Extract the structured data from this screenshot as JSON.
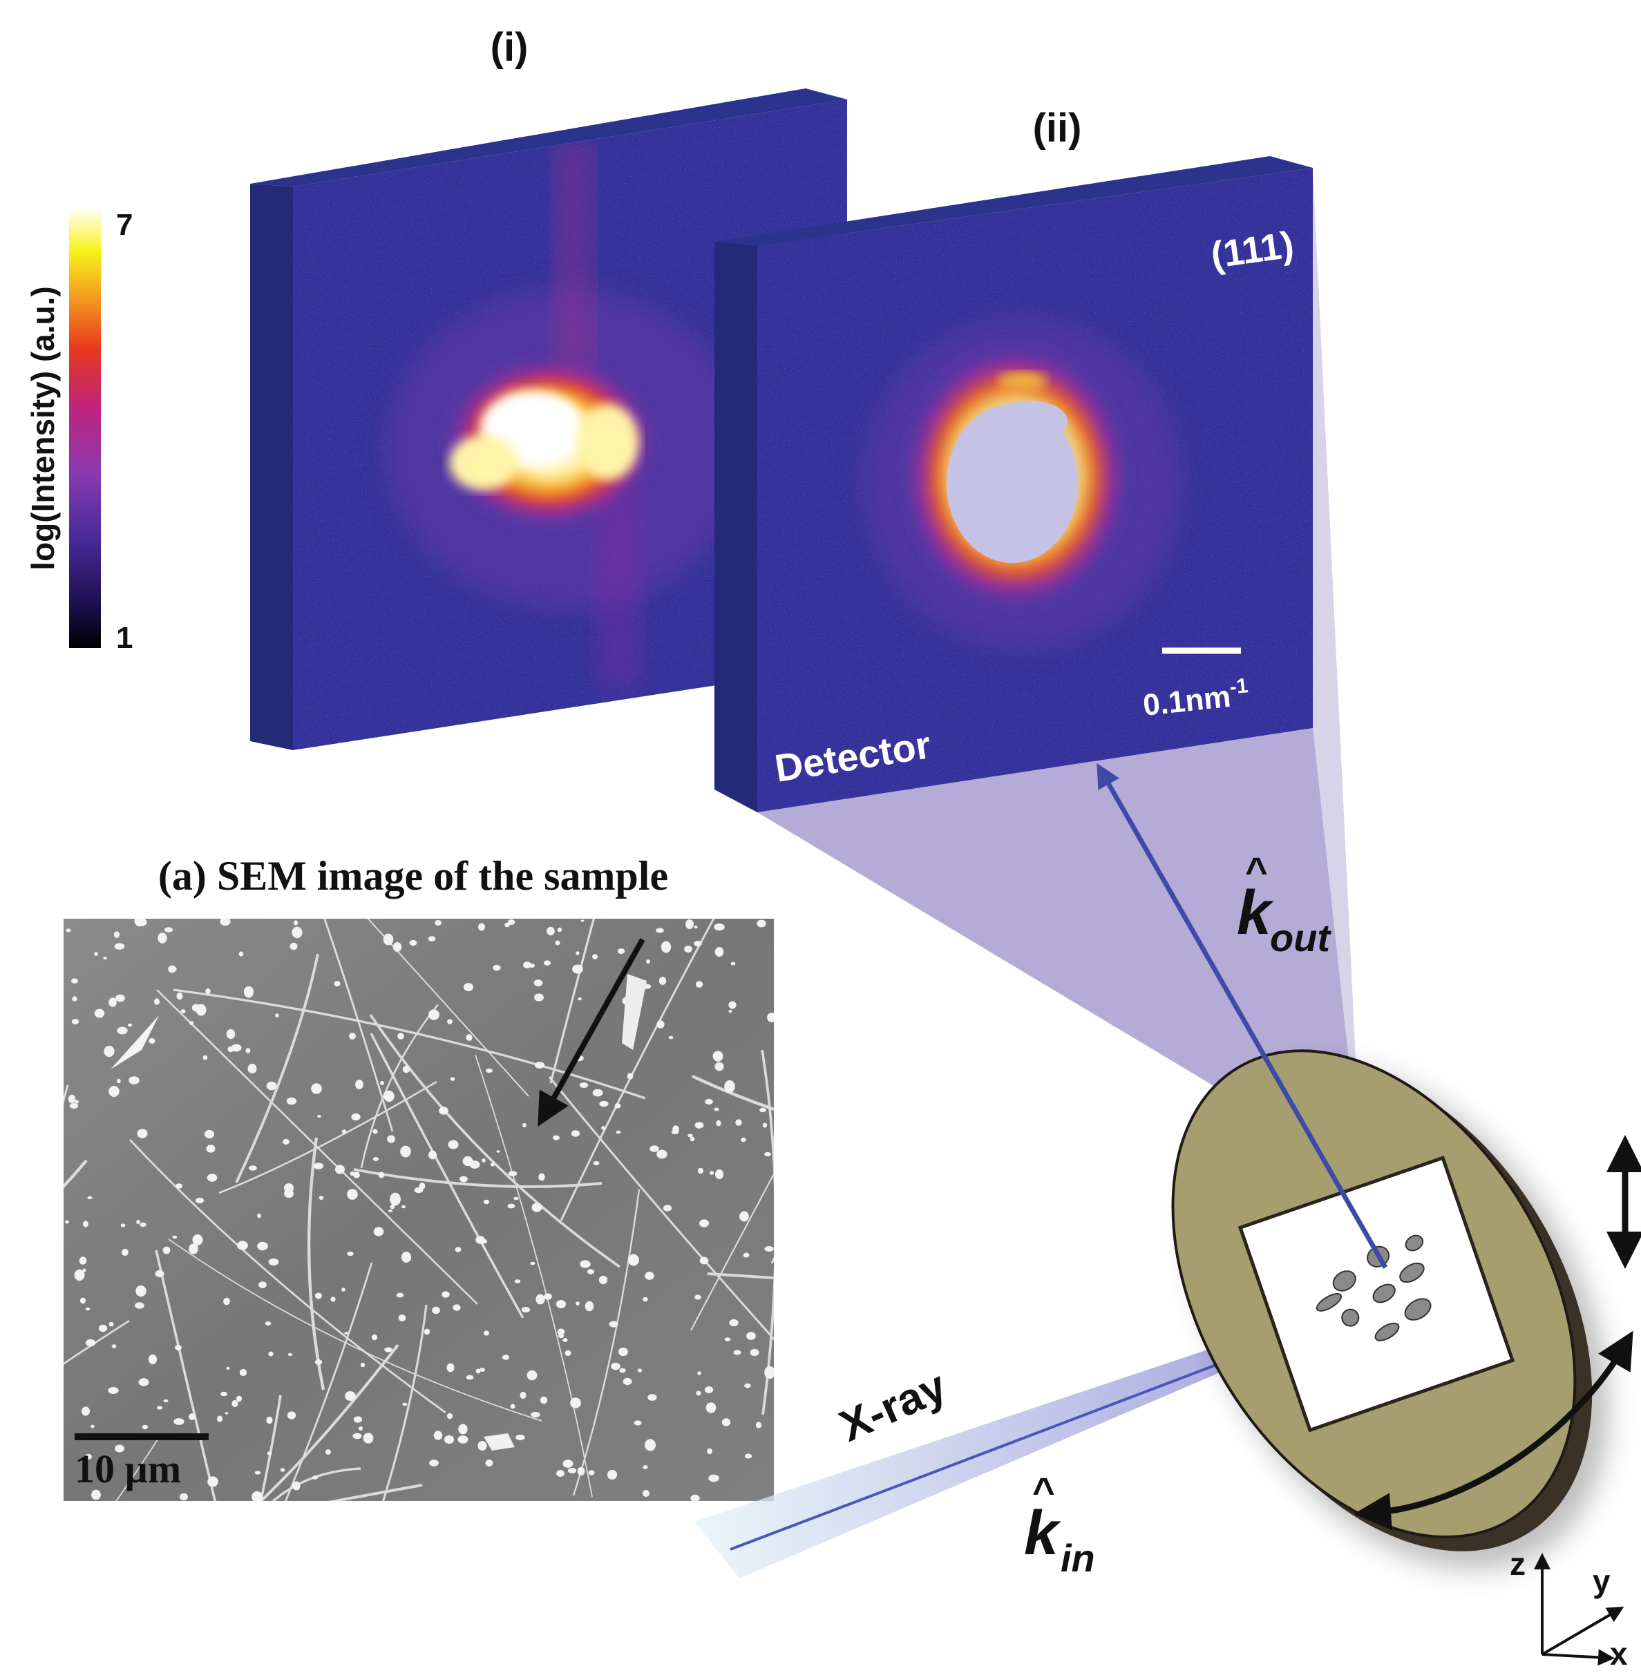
{
  "colorbar": {
    "label": "log(Intensity) (a.u.)",
    "max_label": "7",
    "min_label": "1",
    "colormap": [
      "#000000",
      "#1c1050",
      "#4a2a9a",
      "#8a3ab0",
      "#c2247a",
      "#e8381c",
      "#f4a020",
      "#f7f21a",
      "#ffffff"
    ]
  },
  "panels": {
    "panel_i": {
      "label": "(i)"
    },
    "panel_ii": {
      "label": "(ii)",
      "reflection": "(111)",
      "detector_label": "Detector",
      "scale_bar_label": "0.1nm",
      "scale_bar_exponent": "-1"
    }
  },
  "sem": {
    "title": "(a) SEM image of the sample",
    "scale_bar_label": "10 µm"
  },
  "beams": {
    "xray_label": "X-ray",
    "k_in_symbol": "k",
    "k_in_subscript": "in",
    "k_out_symbol": "k",
    "k_out_subscript": "out",
    "hat": "^"
  },
  "axes": {
    "z": "z",
    "y": "y",
    "x": "x"
  },
  "colors": {
    "detector_blue": "#2a2f86",
    "beam_purple": "#8c7fc0",
    "beam_line": "#3d4aa8",
    "holder_fill": "#a79e70",
    "holder_edge": "#3b3127",
    "sem_gray": "#7d7d7d"
  }
}
